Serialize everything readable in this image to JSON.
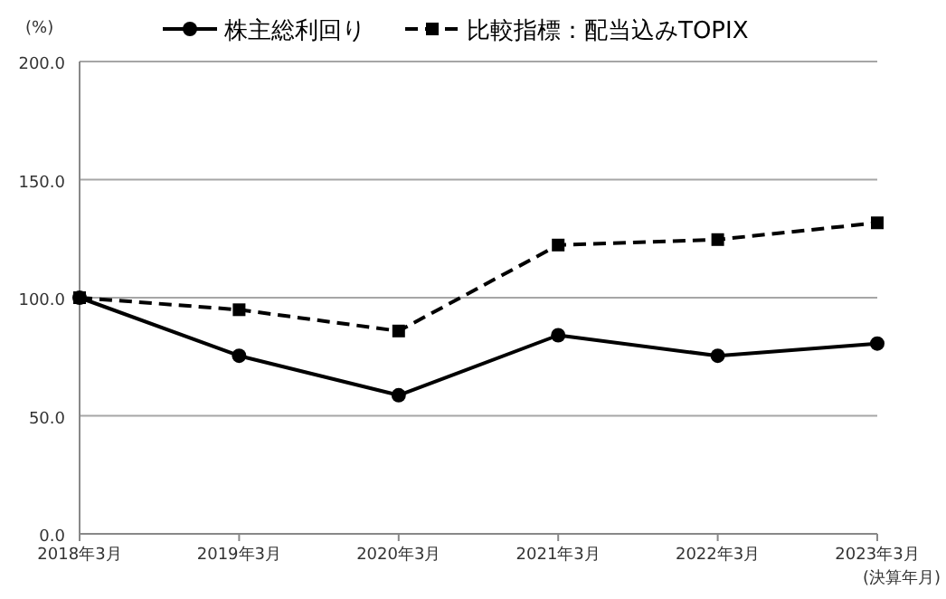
{
  "chart_data": {
    "type": "line",
    "categories": [
      "2018年3月",
      "2019年3月",
      "2020年3月",
      "2021年3月",
      "2022年3月",
      "2023年3月"
    ],
    "series": [
      {
        "name": "株主総利回り",
        "color": "#000000",
        "marker": "circle",
        "line_style": "solid",
        "values": [
          100,
          75.4,
          58.7,
          84.1,
          75.4,
          80.6
        ]
      },
      {
        "name": "比較指標：配当込みTOPIX",
        "color": "#000000",
        "marker": "square",
        "line_style": "dashed",
        "values": [
          100,
          94.9,
          85.9,
          122.3,
          124.6,
          131.7
        ]
      }
    ],
    "ylim": [
      0,
      200
    ],
    "yticks": [
      {
        "value": 0,
        "label": "0.0"
      },
      {
        "value": 50,
        "label": "50.0"
      },
      {
        "value": 100,
        "label": "100.0"
      },
      {
        "value": 150,
        "label": "150.0"
      },
      {
        "value": 200,
        "label": "200.0"
      }
    ],
    "ylabel": "(%)",
    "xlabel": "(決算年月)",
    "grid": "y",
    "legend": "top"
  }
}
